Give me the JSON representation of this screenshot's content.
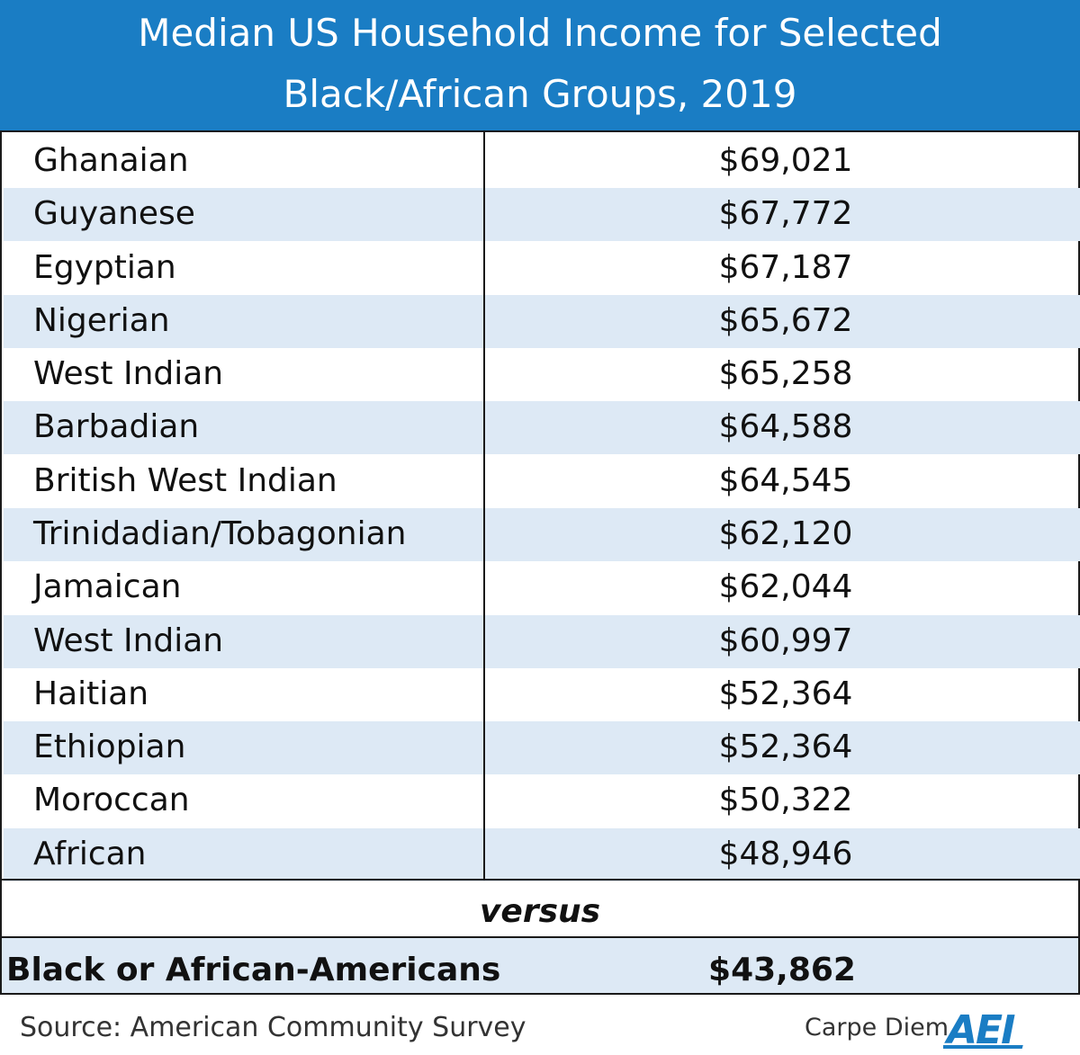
{
  "header": {
    "title_line1": "Median US Household Income for Selected",
    "title_line2": "Black/African Groups, 2019"
  },
  "chart_data": {
    "type": "table",
    "title": "Median US Household Income for Selected Black/African Groups, 2019",
    "rows": [
      {
        "group": "Ghanaian",
        "income": "$69,021"
      },
      {
        "group": "Guyanese",
        "income": "$67,772"
      },
      {
        "group": "Egyptian",
        "income": "$67,187"
      },
      {
        "group": "Nigerian",
        "income": "$65,672"
      },
      {
        "group": "West Indian",
        "income": "$65,258"
      },
      {
        "group": "Barbadian",
        "income": "$64,588"
      },
      {
        "group": "British West Indian",
        "income": "$64,545"
      },
      {
        "group": "Trinidadian/Tobagonian",
        "income": "$62,120"
      },
      {
        "group": "Jamaican",
        "income": "$62,044"
      },
      {
        "group": "West Indian",
        "income": "$60,997"
      },
      {
        "group": "Haitian",
        "income": "$52,364"
      },
      {
        "group": "Ethiopian",
        "income": "$52,364"
      },
      {
        "group": "Moroccan",
        "income": "$50,322"
      },
      {
        "group": "African",
        "income": "$48,946"
      }
    ],
    "comparison_label": "versus",
    "comparison": {
      "group": "Black or African-Americans",
      "income": "$43,862"
    }
  },
  "footer": {
    "source": "Source: American Community Survey",
    "brand": "Carpe Diem",
    "logo_text": "AEI"
  },
  "colors": {
    "header_blue": "#1a7dc4",
    "stripe": "#dde9f5",
    "border": "#1a1a1a"
  }
}
